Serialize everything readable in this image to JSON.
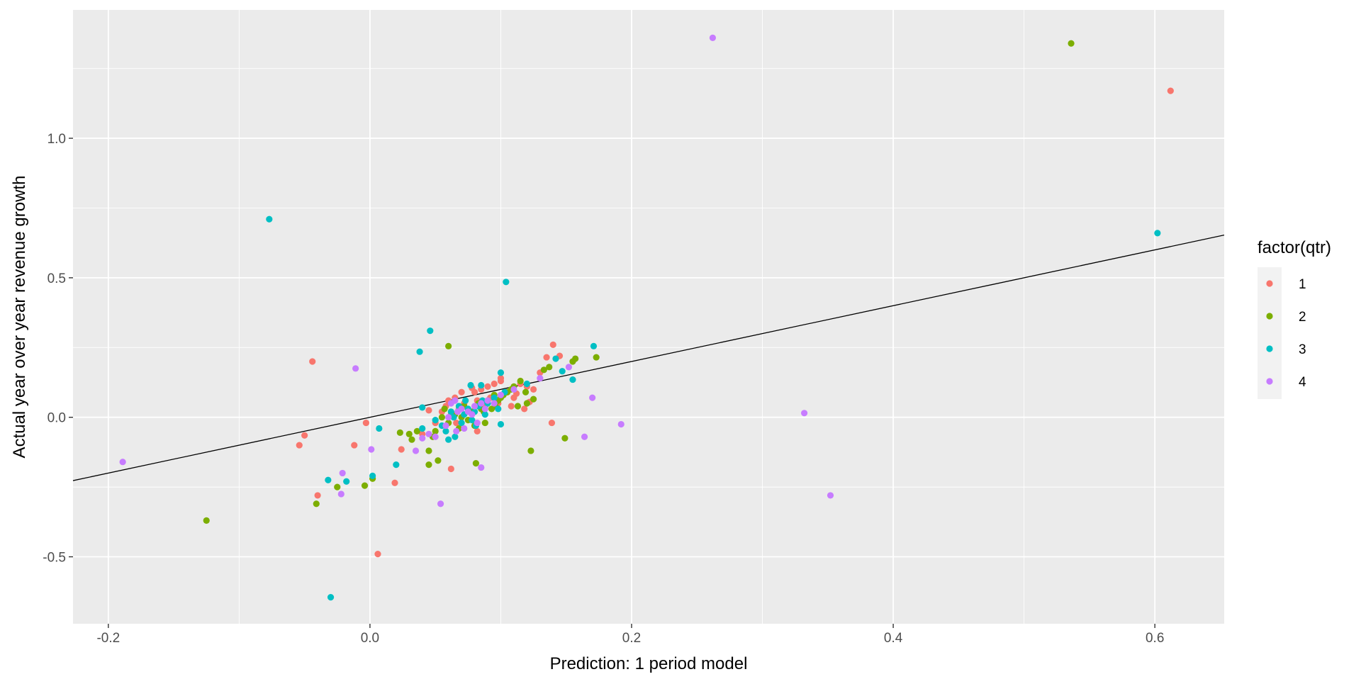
{
  "chart_data": {
    "type": "scatter",
    "xlabel": "Prediction: 1 period model",
    "ylabel": "Actual year over year revenue growth",
    "xlim": [
      -0.227,
      0.653
    ],
    "ylim": [
      -0.74,
      1.46
    ],
    "x_ticks": [
      -0.2,
      0.0,
      0.2,
      0.4,
      0.6
    ],
    "x_tick_labels": [
      "-0.2",
      "0.0",
      "0.2",
      "0.4",
      "0.6"
    ],
    "y_ticks": [
      -0.5,
      0.0,
      0.5,
      1.0
    ],
    "y_tick_labels": [
      "-0.5",
      "0.0",
      "0.5",
      "1.0"
    ],
    "grid": true,
    "legend_position": "right",
    "legend_title": "factor(qtr)",
    "panel_color": "#ebebeb",
    "reference_line": {
      "type": "abline",
      "slope": 1,
      "intercept": 0,
      "color": "#000000"
    },
    "series": [
      {
        "name": "1",
        "color": "#F8766D",
        "points": [
          [
            0.612,
            1.17
          ],
          [
            -0.044,
            0.2
          ],
          [
            -0.054,
            -0.1
          ],
          [
            -0.05,
            -0.065
          ],
          [
            -0.04,
            -0.28
          ],
          [
            -0.012,
            -0.1
          ],
          [
            -0.003,
            -0.02
          ],
          [
            0.006,
            -0.49
          ],
          [
            0.019,
            -0.235
          ],
          [
            0.024,
            -0.115
          ],
          [
            0.045,
            0.025
          ],
          [
            0.062,
            -0.185
          ],
          [
            0.139,
            -0.02
          ],
          [
            0.14,
            0.26
          ],
          [
            0.135,
            0.215
          ],
          [
            0.145,
            0.22
          ],
          [
            0.13,
            0.16
          ],
          [
            0.12,
            0.11
          ],
          [
            0.115,
            0.12
          ],
          [
            0.1,
            0.13
          ],
          [
            0.095,
            0.12
          ],
          [
            0.09,
            0.11
          ],
          [
            0.085,
            0.1
          ],
          [
            0.08,
            0.09
          ],
          [
            0.078,
            0.105
          ],
          [
            0.07,
            0.09
          ],
          [
            0.065,
            0.07
          ],
          [
            0.06,
            0.06
          ],
          [
            0.058,
            0.04
          ],
          [
            0.055,
            0.02
          ],
          [
            0.05,
            -0.02
          ],
          [
            0.062,
            0.01
          ],
          [
            0.068,
            0.03
          ],
          [
            0.072,
            0.05
          ],
          [
            0.075,
            0.02
          ],
          [
            0.082,
            0.06
          ],
          [
            0.088,
            0.04
          ],
          [
            0.092,
            0.07
          ],
          [
            0.098,
            0.05
          ],
          [
            0.105,
            0.09
          ],
          [
            0.11,
            0.07
          ],
          [
            0.118,
            0.03
          ],
          [
            0.125,
            0.1
          ],
          [
            0.082,
            -0.05
          ],
          [
            0.066,
            -0.02
          ],
          [
            0.04,
            -0.06
          ],
          [
            0.1,
            0.14
          ],
          [
            0.108,
            0.04
          ],
          [
            0.112,
            0.085
          ],
          [
            0.122,
            0.055
          ]
        ]
      },
      {
        "name": "2",
        "color": "#7CAE00",
        "points": [
          [
            0.536,
            1.34
          ],
          [
            -0.125,
            -0.37
          ],
          [
            -0.041,
            -0.31
          ],
          [
            -0.025,
            -0.25
          ],
          [
            -0.004,
            -0.245
          ],
          [
            0.002,
            -0.22
          ],
          [
            0.023,
            -0.055
          ],
          [
            0.03,
            -0.06
          ],
          [
            0.032,
            -0.08
          ],
          [
            0.045,
            -0.12
          ],
          [
            0.045,
            -0.17
          ],
          [
            0.052,
            -0.155
          ],
          [
            0.06,
            0.255
          ],
          [
            0.081,
            -0.165
          ],
          [
            0.123,
            -0.12
          ],
          [
            0.149,
            -0.075
          ],
          [
            0.173,
            0.215
          ],
          [
            0.157,
            0.21
          ],
          [
            0.155,
            0.2
          ],
          [
            0.137,
            0.18
          ],
          [
            0.133,
            0.17
          ],
          [
            0.125,
            0.065
          ],
          [
            0.12,
            0.05
          ],
          [
            0.115,
            0.13
          ],
          [
            0.11,
            0.11
          ],
          [
            0.105,
            0.09
          ],
          [
            0.1,
            0.07
          ],
          [
            0.095,
            0.08
          ],
          [
            0.09,
            0.06
          ],
          [
            0.085,
            0.03
          ],
          [
            0.08,
            -0.03
          ],
          [
            0.075,
            -0.01
          ],
          [
            0.07,
            0.0
          ],
          [
            0.068,
            -0.04
          ],
          [
            0.065,
            0.01
          ],
          [
            0.06,
            -0.02
          ],
          [
            0.055,
            0.0
          ],
          [
            0.05,
            -0.05
          ],
          [
            0.048,
            -0.07
          ],
          [
            0.072,
            0.04
          ],
          [
            0.078,
            0.02
          ],
          [
            0.083,
            0.05
          ],
          [
            0.088,
            -0.02
          ],
          [
            0.093,
            0.03
          ],
          [
            0.098,
            0.06
          ],
          [
            0.102,
            0.08
          ],
          [
            0.108,
            0.1
          ],
          [
            0.113,
            0.04
          ],
          [
            0.119,
            0.09
          ],
          [
            0.036,
            -0.05
          ],
          [
            0.057,
            0.03
          ],
          [
            0.087,
            0.02
          ],
          [
            0.096,
            0.04
          ]
        ]
      },
      {
        "name": "3",
        "color": "#00BFC4",
        "points": [
          [
            -0.077,
            0.71
          ],
          [
            0.104,
            0.485
          ],
          [
            0.046,
            0.31
          ],
          [
            0.038,
            0.235
          ],
          [
            0.602,
            0.66
          ],
          [
            -0.03,
            -0.645
          ],
          [
            -0.032,
            -0.225
          ],
          [
            -0.018,
            -0.23
          ],
          [
            0.002,
            -0.21
          ],
          [
            0.007,
            -0.04
          ],
          [
            0.02,
            -0.17
          ],
          [
            0.171,
            0.255
          ],
          [
            0.155,
            0.135
          ],
          [
            0.142,
            0.21
          ],
          [
            0.147,
            0.165
          ],
          [
            0.12,
            0.12
          ],
          [
            0.1,
            0.16
          ],
          [
            0.1,
            -0.025
          ],
          [
            0.085,
            0.115
          ],
          [
            0.077,
            0.115
          ],
          [
            0.04,
            0.035
          ],
          [
            0.04,
            -0.04
          ],
          [
            0.05,
            -0.01
          ],
          [
            0.055,
            -0.03
          ],
          [
            0.06,
            -0.08
          ],
          [
            0.065,
            -0.07
          ],
          [
            0.07,
            -0.02
          ],
          [
            0.072,
            0.01
          ],
          [
            0.075,
            0.03
          ],
          [
            0.078,
            -0.01
          ],
          [
            0.08,
            0.02
          ],
          [
            0.083,
            0.04
          ],
          [
            0.086,
            0.06
          ],
          [
            0.09,
            0.05
          ],
          [
            0.095,
            0.07
          ],
          [
            0.098,
            0.03
          ],
          [
            0.103,
            0.09
          ],
          [
            0.062,
            0.02
          ],
          [
            0.068,
            0.04
          ],
          [
            0.073,
            0.06
          ],
          [
            0.058,
            -0.05
          ],
          [
            0.064,
            0.0
          ],
          [
            0.081,
            -0.03
          ],
          [
            0.088,
            0.01
          ]
        ]
      },
      {
        "name": "4",
        "color": "#C77CFF",
        "points": [
          [
            0.262,
            1.36
          ],
          [
            -0.189,
            -0.16
          ],
          [
            -0.011,
            0.175
          ],
          [
            -0.021,
            -0.2
          ],
          [
            -0.022,
            -0.275
          ],
          [
            0.001,
            -0.115
          ],
          [
            0.035,
            -0.12
          ],
          [
            0.054,
            -0.31
          ],
          [
            0.085,
            -0.18
          ],
          [
            0.164,
            -0.07
          ],
          [
            0.17,
            0.07
          ],
          [
            0.192,
            -0.025
          ],
          [
            0.332,
            0.015
          ],
          [
            0.352,
            -0.28
          ],
          [
            0.152,
            0.18
          ],
          [
            0.13,
            0.14
          ],
          [
            0.11,
            0.1
          ],
          [
            0.1,
            0.08
          ],
          [
            0.09,
            0.06
          ],
          [
            0.085,
            0.05
          ],
          [
            0.08,
            0.04
          ],
          [
            0.075,
            0.02
          ],
          [
            0.07,
            0.03
          ],
          [
            0.065,
            0.06
          ],
          [
            0.06,
            0.0
          ],
          [
            0.058,
            -0.03
          ],
          [
            0.05,
            -0.07
          ],
          [
            0.045,
            -0.06
          ],
          [
            0.04,
            -0.075
          ],
          [
            0.066,
            -0.05
          ],
          [
            0.072,
            -0.04
          ],
          [
            0.078,
            0.01
          ],
          [
            0.082,
            -0.02
          ],
          [
            0.088,
            0.03
          ],
          [
            0.095,
            0.05
          ],
          [
            0.067,
            0.02
          ],
          [
            0.062,
            0.05
          ]
        ]
      }
    ]
  }
}
